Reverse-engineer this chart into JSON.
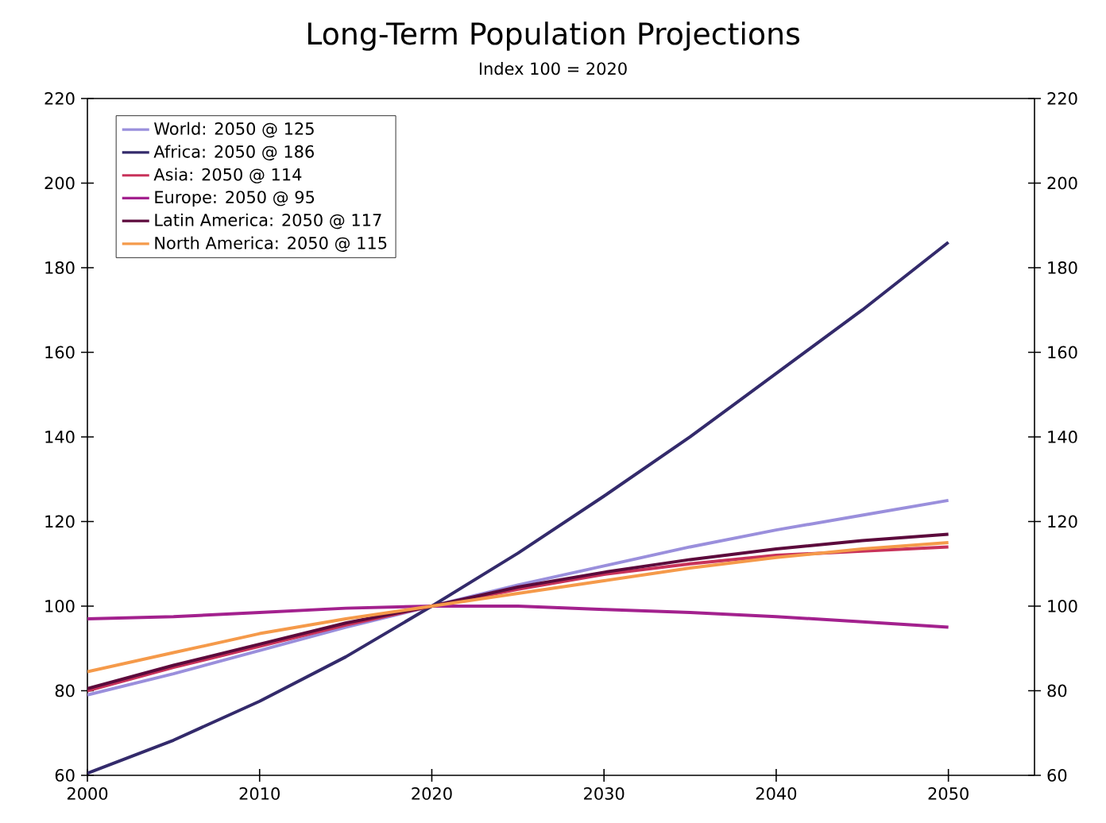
{
  "chart_data": {
    "type": "line",
    "title": "Long-Term Population Projections",
    "subtitle": "Index 100 = 2020",
    "x": [
      2000,
      2005,
      2010,
      2015,
      2020,
      2025,
      2030,
      2035,
      2040,
      2045,
      2050
    ],
    "xlim": [
      2000,
      2055
    ],
    "xticks": [
      2000,
      2010,
      2020,
      2030,
      2040,
      2050
    ],
    "ylim": [
      60,
      220
    ],
    "yticks": [
      60,
      80,
      100,
      120,
      140,
      160,
      180,
      200,
      220
    ],
    "y2lim": [
      60,
      220
    ],
    "y2ticks": [
      60,
      80,
      100,
      120,
      140,
      160,
      180,
      200,
      220
    ],
    "legend": "top left",
    "grid": false,
    "marker": "none",
    "line_style": "solid",
    "series": [
      {
        "name": "World: 2050 @ 125",
        "color": "#9a8fdc",
        "values": [
          79,
          84,
          89.5,
          95,
          100,
          105,
          109.5,
          114,
          118,
          121.5,
          125
        ]
      },
      {
        "name": "Africa: 2050 @ 186",
        "color": "#332a6b",
        "values": [
          60.5,
          68.3,
          77.5,
          88,
          100,
          112.5,
          126,
          140,
          155,
          170,
          186
        ]
      },
      {
        "name": "Asia: 2050 @ 114",
        "color": "#c8325a",
        "values": [
          80,
          85.5,
          90.5,
          95.5,
          100,
          104,
          107.5,
          110,
          112,
          113,
          114
        ]
      },
      {
        "name": "Europe: 2050 @ 95",
        "color": "#a3218e",
        "values": [
          97,
          97.5,
          98.5,
          99.5,
          100,
          100,
          99.2,
          98.5,
          97.5,
          96.3,
          95
        ]
      },
      {
        "name": "Latin America: 2050 @ 117",
        "color": "#5c0a3c",
        "values": [
          80.5,
          86,
          91,
          96,
          100,
          104.5,
          108,
          111,
          113.5,
          115.5,
          117
        ]
      },
      {
        "name": "North America: 2050 @ 115",
        "color": "#f59a4a",
        "values": [
          84.5,
          89,
          93.5,
          97,
          100,
          103,
          106,
          109,
          111.5,
          113.5,
          115
        ]
      }
    ]
  }
}
